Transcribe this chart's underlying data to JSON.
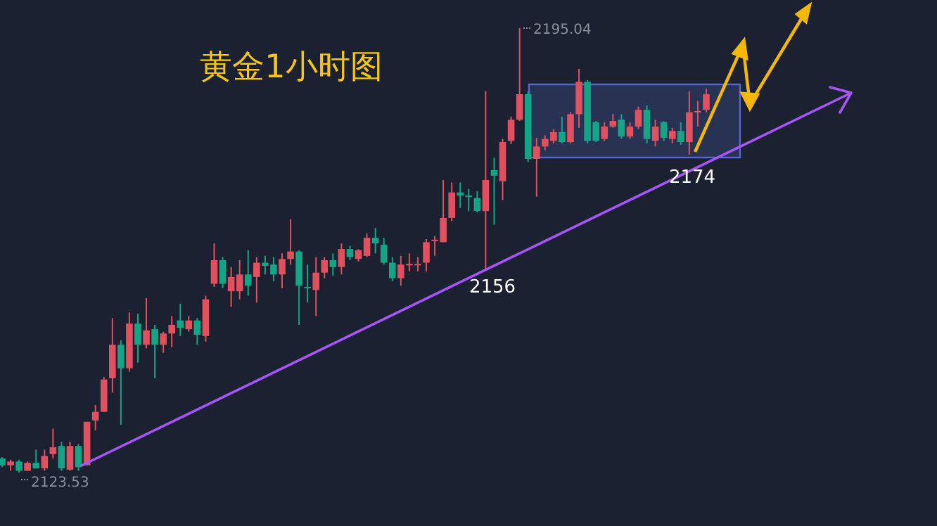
{
  "chart_data": {
    "type": "candlestick",
    "title": "黄金1小时图",
    "categories": [
      null,
      null,
      null,
      null,
      null,
      null,
      null,
      null,
      null,
      null,
      null,
      null,
      null,
      null,
      null,
      null,
      null,
      null,
      null,
      null,
      null,
      null,
      null,
      null,
      null,
      null,
      null,
      null,
      null,
      null,
      null,
      null,
      null,
      null,
      null,
      null,
      null,
      null,
      null,
      null,
      null,
      null,
      null,
      null,
      null,
      null,
      null,
      null,
      null,
      null,
      null,
      null,
      null,
      null,
      null,
      null,
      null,
      null,
      null,
      null,
      null,
      null,
      null,
      null,
      null,
      null,
      null,
      null,
      null,
      null,
      null,
      null,
      null,
      null,
      null,
      null,
      null,
      null,
      null,
      null,
      null,
      null,
      null,
      null
    ],
    "colors": [
      "#14a586",
      "#e0505e",
      "#14a586",
      "#e0505e",
      "#14a586",
      "#e0505e",
      "#e0505e",
      "#14a586",
      "#e0505e",
      "#14a586",
      "#e0505e",
      "#e0505e",
      "#e0505e",
      "#e0505e",
      "#14a586",
      "#e0505e",
      "#14a586",
      "#e0505e",
      "#14a586",
      "#e0505e",
      "#e0505e",
      "#14a586",
      "#e0505e",
      "#14a586",
      "#e0505e",
      "#e0505e",
      "#14a586",
      "#e0505e",
      "#e0505e",
      "#14a586",
      "#e0505e",
      "#14a586",
      "#14a586",
      "#e0505e",
      "#e0505e",
      "#14a586",
      "#14a586",
      "#e0505e",
      "#e0505e",
      "#14a586",
      "#e0505e",
      "#14a586",
      "#e0505e",
      "#e0505e",
      "#14a586",
      "#14a586",
      "#14a586",
      "#e0505e",
      "#e0505e",
      "#e0505e",
      "#e0505e",
      "#e0505e",
      "#e0505e",
      "#e0505e",
      "#14a586",
      "#14a586",
      "#14a586",
      "#e0505e",
      "#14a586",
      "#e0505e",
      "#e0505e",
      "#e0505e",
      "#14a586",
      "#e0505e",
      "#e0505e",
      "#e0505e",
      "#14a586",
      "#e0505e",
      "#e0505e",
      "#14a586",
      "#14a586",
      "#e0505e",
      "#e0505e",
      "#14a586",
      "#e0505e",
      "#e0505e",
      "#14a586",
      "#e0505e",
      "#14a586",
      "#e0505e",
      "#14a586",
      "#e0505e",
      "#e0505e",
      "#e0505e"
    ],
    "ohlc": [
      [
        2125.8,
        2126.0,
        2124.4,
        2124.7
      ],
      [
        2124.7,
        2125.6,
        2123.8,
        2125.3
      ],
      [
        2125.3,
        2125.6,
        2123.53,
        2123.8
      ],
      [
        2123.8,
        2125.3,
        2123.8,
        2125.1
      ],
      [
        2125.1,
        2127.2,
        2124.2,
        2124.2
      ],
      [
        2124.2,
        2127.2,
        2123.8,
        2126.2
      ],
      [
        2126.5,
        2130.6,
        2125.8,
        2127.6
      ],
      [
        2127.8,
        2128.5,
        2123.8,
        2124.2
      ],
      [
        2124.0,
        2128.5,
        2123.8,
        2127.8
      ],
      [
        2127.8,
        2128.1,
        2123.8,
        2124.4
      ],
      [
        2124.7,
        2131.7,
        2124.7,
        2131.7
      ],
      [
        2131.9,
        2134.4,
        2130.3,
        2133.3
      ],
      [
        2133.3,
        2138.9,
        2133.3,
        2138.5
      ],
      [
        2138.7,
        2148.4,
        2136.4,
        2144.1
      ],
      [
        2144.1,
        2144.8,
        2131.2,
        2140.3
      ],
      [
        2140.3,
        2149.3,
        2139.8,
        2147.5
      ],
      [
        2147.5,
        2149.1,
        2141.2,
        2144.1
      ],
      [
        2144.1,
        2151.6,
        2143.5,
        2146.4
      ],
      [
        2146.6,
        2147.3,
        2138.7,
        2144.1
      ],
      [
        2144.1,
        2146.2,
        2142.8,
        2145.9
      ],
      [
        2145.9,
        2148.7,
        2143.7,
        2147.3
      ],
      [
        2148.0,
        2150.7,
        2145.5,
        2146.8
      ],
      [
        2146.6,
        2148.7,
        2146.2,
        2148.0
      ],
      [
        2148.0,
        2148.4,
        2144.1,
        2145.7
      ],
      [
        2145.5,
        2152.0,
        2144.6,
        2151.4
      ],
      [
        2153.9,
        2160.4,
        2153.4,
        2157.7
      ],
      [
        2157.7,
        2158.2,
        2153.2,
        2153.9
      ],
      [
        2152.7,
        2156.6,
        2150.2,
        2155.0
      ],
      [
        2152.7,
        2157.7,
        2151.4,
        2155.4
      ],
      [
        2155.4,
        2159.3,
        2152.0,
        2153.6
      ],
      [
        2155.0,
        2158.2,
        2150.9,
        2157.3
      ],
      [
        2157.3,
        2158.4,
        2155.4,
        2156.8
      ],
      [
        2157.0,
        2158.2,
        2154.3,
        2155.4
      ],
      [
        2155.4,
        2158.8,
        2153.2,
        2157.9
      ],
      [
        2157.9,
        2164.3,
        2157.0,
        2159.1
      ],
      [
        2159.1,
        2159.3,
        2147.3,
        2153.6
      ],
      [
        2153.4,
        2157.0,
        2150.9,
        2153.2
      ],
      [
        2152.9,
        2158.2,
        2148.7,
        2155.7
      ],
      [
        2155.7,
        2158.2,
        2154.8,
        2157.7
      ],
      [
        2157.7,
        2158.8,
        2155.2,
        2156.6
      ],
      [
        2156.6,
        2160.4,
        2155.4,
        2159.5
      ],
      [
        2159.5,
        2160.0,
        2157.7,
        2158.2
      ],
      [
        2157.9,
        2159.5,
        2157.5,
        2159.3
      ],
      [
        2158.4,
        2162.0,
        2158.2,
        2161.3
      ],
      [
        2161.3,
        2162.9,
        2158.8,
        2160.4
      ],
      [
        2160.2,
        2161.3,
        2157.0,
        2157.3
      ],
      [
        2157.3,
        2158.2,
        2154.3,
        2154.8
      ],
      [
        2154.8,
        2158.4,
        2153.6,
        2157.0
      ],
      [
        2157.0,
        2158.8,
        2155.9,
        2157.1
      ],
      [
        2157.0,
        2158.2,
        2155.9,
        2157.1
      ],
      [
        2157.3,
        2161.1,
        2155.9,
        2160.6
      ],
      [
        2160.9,
        2161.6,
        2158.4,
        2161.0
      ],
      [
        2160.6,
        2170.6,
        2160.6,
        2164.5
      ],
      [
        2164.5,
        2170.2,
        2164.0,
        2168.6
      ],
      [
        2168.6,
        2170.2,
        2166.1,
        2168.1
      ],
      [
        2168.1,
        2169.2,
        2165.6,
        2167.9
      ],
      [
        2167.7,
        2168.8,
        2165.4,
        2165.6
      ],
      [
        2165.6,
        2184.9,
        2156,
        2170.6
      ],
      [
        2172.2,
        2174.2,
        2163.4,
        2171.3
      ],
      [
        2170.4,
        2177.2,
        2167.4,
        2176.7
      ],
      [
        2176.9,
        2180.8,
        2176.4,
        2180.3
      ],
      [
        2180.3,
        2195.04,
        2180.1,
        2184.4
      ],
      [
        2184.4,
        2184.9,
        2173.5,
        2174.0
      ],
      [
        2174.0,
        2177.4,
        2167.9,
        2176.0
      ],
      [
        2176.0,
        2177.8,
        2175.4,
        2177.2
      ],
      [
        2176.9,
        2178.8,
        2176.5,
        2178.3
      ],
      [
        2178.3,
        2180.8,
        2176.5,
        2176.7
      ],
      [
        2176.7,
        2181.5,
        2176.5,
        2181.2
      ],
      [
        2181.2,
        2188.5,
        2179.0,
        2186.4
      ],
      [
        2186.4,
        2186.7,
        2176.5,
        2176.9
      ],
      [
        2179.9,
        2180.1,
        2176.7,
        2176.9
      ],
      [
        2177.2,
        2179.9,
        2176.9,
        2179.2
      ],
      [
        2179.2,
        2181.2,
        2179.0,
        2180.1
      ],
      [
        2180.3,
        2181.2,
        2177.2,
        2177.6
      ],
      [
        2177.6,
        2179.9,
        2177.2,
        2179.2
      ],
      [
        2179.2,
        2182.4,
        2178.8,
        2181.9
      ],
      [
        2181.9,
        2182.6,
        2176.5,
        2177.2
      ],
      [
        2176.9,
        2180.3,
        2176.0,
        2179.2
      ],
      [
        2179.9,
        2180.1,
        2176.9,
        2177.4
      ],
      [
        2177.2,
        2179.0,
        2176.5,
        2178.5
      ],
      [
        2178.5,
        2179.9,
        2176.3,
        2176.7
      ],
      [
        2176.7,
        2184.9,
        2174.7,
        2181.5
      ],
      [
        2181.5,
        2183.3,
        2179.2,
        2181.7
      ],
      [
        2181.9,
        2185.3,
        2181.5,
        2184.4
      ]
    ],
    "annotations": [
      "2195.04",
      "2123.53",
      "2156",
      "2174"
    ]
  }
}
